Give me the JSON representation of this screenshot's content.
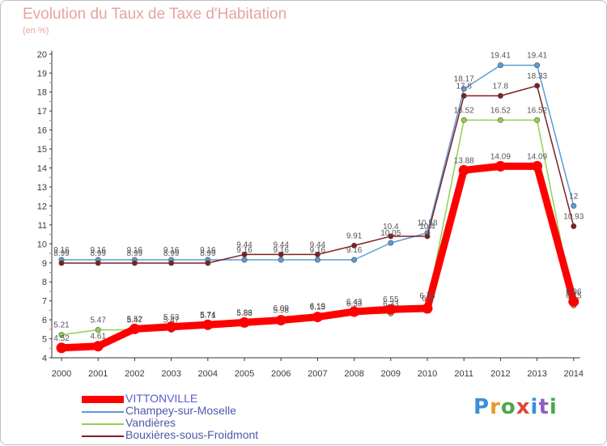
{
  "title": "Evolution du Taux de Taxe d'Habitation",
  "unit": "(en %)",
  "brand": {
    "text": "Proxiti",
    "colors": [
      "#3b8fd8",
      "#e8962a",
      "#4aa84a",
      "#d94a3a",
      "#3b8fd8",
      "#8e5fbf",
      "#4aa84a"
    ]
  },
  "chart_data": {
    "type": "line",
    "x": [
      "2000",
      "2001",
      "2002",
      "2003",
      "2004",
      "2005",
      "2006",
      "2007",
      "2008",
      "2009",
      "2010",
      "2011",
      "2012",
      "2013",
      "2014"
    ],
    "ylim": [
      4,
      20
    ],
    "yticks": [
      4,
      5,
      6,
      7,
      8,
      9,
      10,
      11,
      12,
      13,
      14,
      15,
      16,
      17,
      18,
      19,
      20
    ],
    "grid": false,
    "legend_position": "bottom-left",
    "series": [
      {
        "name": "Champey-sur-Moselle",
        "color": "#5b9bd5",
        "values": [
          9.16,
          9.16,
          9.16,
          9.16,
          9.16,
          9.16,
          9.16,
          9.16,
          9.16,
          10.05,
          10.58,
          18.17,
          19.41,
          19.41,
          12
        ],
        "labels": [
          "9.16",
          "9.16",
          "9.16",
          "9.16",
          "9.16",
          "9.16",
          "9.16",
          "9.16",
          "9.16",
          "10.05",
          "10.58",
          "18.17",
          "19.41",
          "19.41",
          "12"
        ]
      },
      {
        "name": "Bouxières-sous-Froidmont",
        "color": "#7f1f1f",
        "values": [
          8.99,
          8.99,
          8.99,
          8.99,
          8.99,
          9.44,
          9.44,
          9.44,
          9.91,
          10.4,
          10.4,
          17.8,
          17.8,
          18.33,
          10.93
        ],
        "labels": [
          "8.99",
          "8.99",
          "8.99",
          "8.99",
          "8.99",
          "9.44",
          "9.44",
          "9.44",
          "9.91",
          "10.4",
          "10.4",
          "17.8",
          "17.8",
          "18.33",
          "10.93"
        ]
      },
      {
        "name": "Vandières",
        "color": "#92d050",
        "values": [
          5.21,
          5.47,
          5.47,
          5.47,
          5.71,
          5.83,
          6.09,
          6.19,
          6.33,
          6.33,
          6.76,
          16.52,
          16.52,
          16.52,
          6.75
        ],
        "labels": [
          "5.21",
          "5.47",
          "5.47",
          "5.47",
          "5.71",
          "5.83",
          "6.09",
          "6.19",
          "6.33",
          "6.33",
          "6.76",
          "16.52",
          "16.52",
          "16.52",
          "6.75"
        ]
      },
      {
        "name": "VITTONVILLE",
        "color": "#ff0000",
        "values": [
          4.52,
          4.61,
          5.52,
          5.63,
          5.74,
          5.86,
          5.98,
          6.15,
          6.43,
          6.55,
          6.6,
          13.88,
          14.09,
          14.09,
          6.96
        ],
        "labels": [
          "4.52",
          "4.61",
          "5.52",
          "5.63",
          "5.74",
          "5.86",
          "5.98",
          "6.15",
          "6.43",
          "6.55",
          "6.6",
          "13.88",
          "14.09",
          "14.09",
          "6.96"
        ]
      }
    ],
    "legend_order": [
      "VITTONVILLE",
      "Champey-sur-Moselle",
      "Vandières",
      "Bouxières-sous-Froidmont"
    ]
  }
}
